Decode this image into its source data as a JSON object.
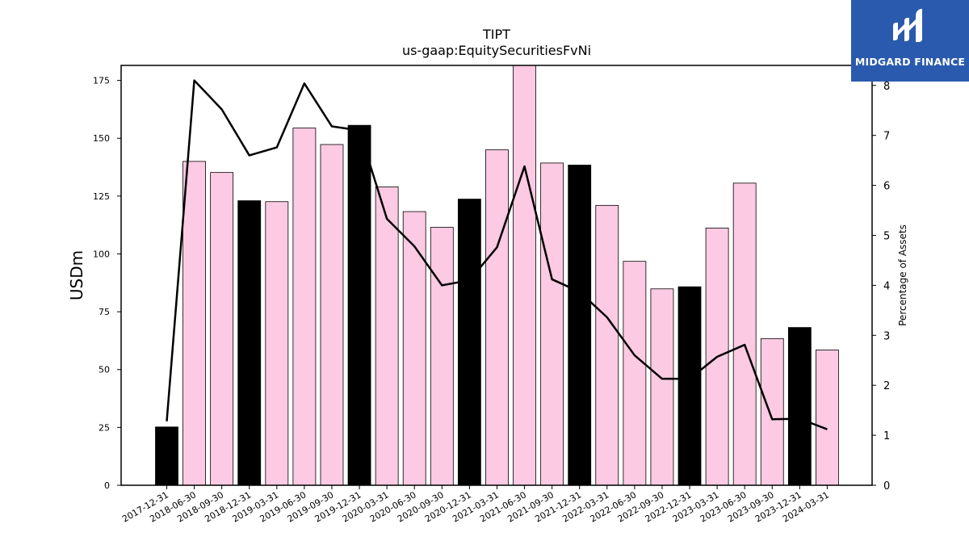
{
  "chart_data": {
    "type": "bar",
    "title": "TIPT",
    "subtitle": "us-gaap:EquitySecuritiesFvNi",
    "ylabel": "USDm",
    "y2label": "Percentage of Assets",
    "ylim": [
      0,
      181.5
    ],
    "y2lim": [
      0,
      8.4
    ],
    "yticks": [
      0,
      25,
      50,
      75,
      100,
      125,
      150,
      175
    ],
    "y2ticks": [
      0,
      1,
      2,
      3,
      4,
      5,
      6,
      7,
      8
    ],
    "grid": false,
    "categories": [
      "2017-12-31",
      "2018-06-30",
      "2018-09-30",
      "2018-12-31",
      "2019-03-31",
      "2019-06-30",
      "2019-09-30",
      "2019-12-31",
      "2020-03-31",
      "2020-06-30",
      "2020-09-30",
      "2020-12-31",
      "2021-03-31",
      "2021-06-30",
      "2021-09-30",
      "2021-12-31",
      "2022-03-31",
      "2022-06-30",
      "2022-09-30",
      "2022-12-31",
      "2023-03-31",
      "2023-06-30",
      "2023-09-30",
      "2023-12-31",
      "2024-03-31"
    ],
    "series": [
      {
        "type": "bar",
        "axis": "left",
        "values": [
          25.2,
          140.0,
          135.2,
          123.0,
          122.6,
          154.4,
          147.3,
          155.6,
          129.0,
          118.3,
          111.5,
          123.7,
          145.0,
          181.5,
          139.3,
          138.4,
          121.0,
          96.8,
          84.9,
          85.8,
          111.2,
          130.6,
          63.4,
          68.2,
          58.5
        ]
      },
      {
        "type": "line",
        "axis": "right",
        "values": [
          1.28,
          8.1,
          7.52,
          6.6,
          6.76,
          8.04,
          7.18,
          7.1,
          5.33,
          4.78,
          4.0,
          4.1,
          4.76,
          6.38,
          4.12,
          3.87,
          3.36,
          2.6,
          2.13,
          2.13,
          2.57,
          2.81,
          1.32,
          1.33,
          1.12
        ]
      }
    ],
    "year_end_color": "#000000",
    "bar_color": "#fccae2",
    "line_color": "#000000"
  },
  "logo": {
    "text": "MIDGARD FINANCE",
    "icon_name": "midgard-logo-icon",
    "background": "#2a5aad"
  }
}
